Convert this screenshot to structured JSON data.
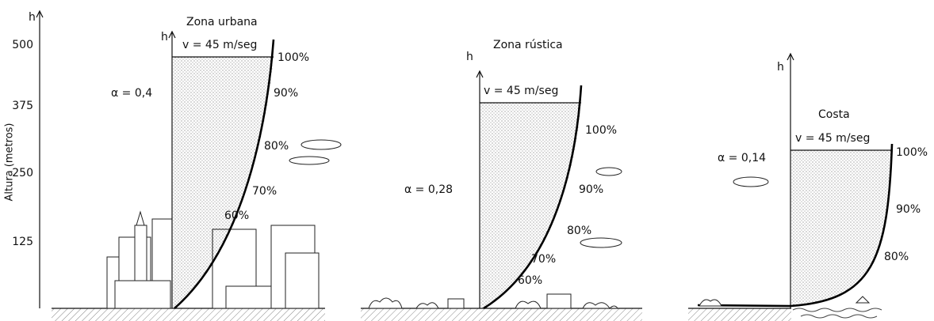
{
  "axis": {
    "h": "h",
    "label": "Altura (metros)",
    "ticks": [
      "500",
      "375",
      "250",
      "125"
    ]
  },
  "panels": [
    {
      "h": "h",
      "title": "Zona urbana",
      "velocity": "v = 45 m/seg",
      "alpha": "α = 0,4",
      "percents": [
        "100%",
        "90%",
        "80%",
        "70%",
        "60%"
      ]
    },
    {
      "h": "h",
      "title": "Zona rústica",
      "velocity": "v = 45 m/seg",
      "alpha": "α = 0,28",
      "percents": [
        "100%",
        "90%",
        "80%",
        "70%",
        "60%"
      ]
    },
    {
      "h": "h",
      "title": "Costa",
      "velocity": "v = 45 m/seg",
      "alpha": "α = 0,14",
      "percents": [
        "100%",
        "90%",
        "80%"
      ]
    }
  ]
}
